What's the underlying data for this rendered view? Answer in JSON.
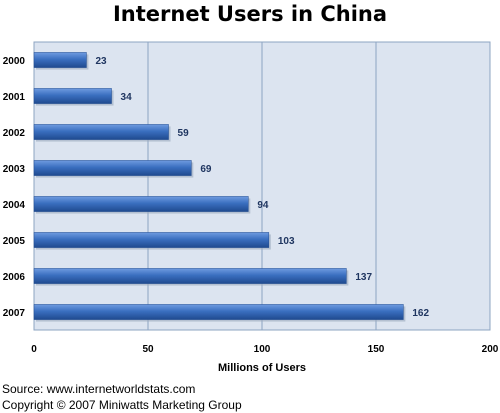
{
  "chart_data": {
    "type": "bar",
    "orientation": "horizontal",
    "title": "Internet Users in China",
    "xlabel": "Millions of Users",
    "ylabel": "",
    "categories": [
      "2000",
      "2001",
      "2002",
      "2003",
      "2004",
      "2005",
      "2006",
      "2007"
    ],
    "values": [
      23,
      34,
      59,
      69,
      94,
      103,
      137,
      162
    ],
    "xlim": [
      0,
      200
    ],
    "xticks": [
      "0",
      "50",
      "100",
      "150",
      "200"
    ],
    "grid": "vertical",
    "legend": "none",
    "colors": {
      "bar": "#3a6fc0",
      "bar_dark": "#1f4a8f",
      "bar_light": "#6f9be0",
      "plot_background": "#dce4f0",
      "gridline": "#8da4c2",
      "value_label": "#1f3560"
    }
  },
  "footer": {
    "source": "Source: www.internetworldstats.com",
    "copyright": "Copyright © 2007 Miniwatts Marketing Group"
  }
}
